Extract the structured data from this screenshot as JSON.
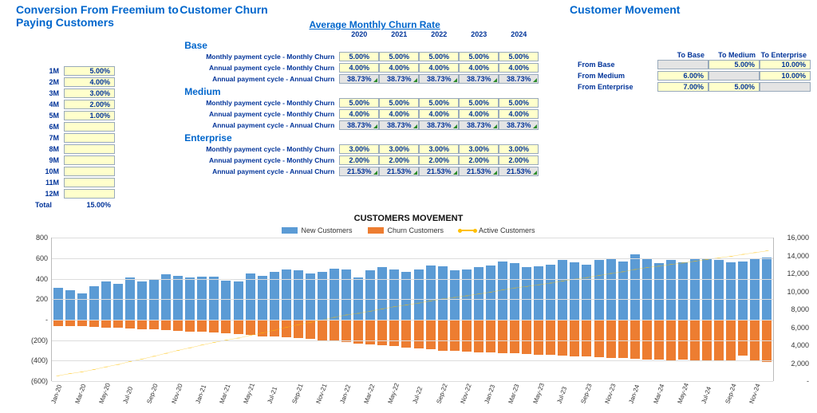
{
  "titles": {
    "conversion": "Conversion From Freemium to Paying Customers",
    "churn": "Customer Churn",
    "movement": "Customer Movement",
    "churn_header": "Average Monthly Churn Rate",
    "chart": "CUSTOMERS MOVEMENT"
  },
  "conversion": {
    "rows": [
      {
        "m": "1M",
        "v": "5.00%"
      },
      {
        "m": "2M",
        "v": "4.00%"
      },
      {
        "m": "3M",
        "v": "3.00%"
      },
      {
        "m": "4M",
        "v": "2.00%"
      },
      {
        "m": "5M",
        "v": "1.00%"
      },
      {
        "m": "6M",
        "v": ""
      },
      {
        "m": "7M",
        "v": ""
      },
      {
        "m": "8M",
        "v": ""
      },
      {
        "m": "9M",
        "v": ""
      },
      {
        "m": "10M",
        "v": ""
      },
      {
        "m": "11M",
        "v": ""
      },
      {
        "m": "12M",
        "v": ""
      }
    ],
    "total_label": "Total",
    "total_value": "15.00%"
  },
  "churn_years": [
    "2020",
    "2021",
    "2022",
    "2023",
    "2024"
  ],
  "churn_tiers": [
    {
      "name": "Base",
      "rows": [
        {
          "label": "Monthly payment cycle - Monthly Churn",
          "cells": [
            "5.00%",
            "5.00%",
            "5.00%",
            "5.00%",
            "5.00%"
          ],
          "gray": false
        },
        {
          "label": "Annual payment cycle - Monthly Churn",
          "cells": [
            "4.00%",
            "4.00%",
            "4.00%",
            "4.00%",
            "4.00%"
          ],
          "gray": false
        },
        {
          "label": "Annual payment cycle - Annual Churn",
          "cells": [
            "38.73%",
            "38.73%",
            "38.73%",
            "38.73%",
            "38.73%"
          ],
          "gray": true
        }
      ]
    },
    {
      "name": "Medium",
      "rows": [
        {
          "label": "Monthly payment cycle - Monthly Churn",
          "cells": [
            "5.00%",
            "5.00%",
            "5.00%",
            "5.00%",
            "5.00%"
          ],
          "gray": false
        },
        {
          "label": "Annual payment cycle - Monthly Churn",
          "cells": [
            "4.00%",
            "4.00%",
            "4.00%",
            "4.00%",
            "4.00%"
          ],
          "gray": false
        },
        {
          "label": "Annual payment cycle - Annual Churn",
          "cells": [
            "38.73%",
            "38.73%",
            "38.73%",
            "38.73%",
            "38.73%"
          ],
          "gray": true
        }
      ]
    },
    {
      "name": "Enterprise",
      "rows": [
        {
          "label": "Monthly payment cycle - Monthly Churn",
          "cells": [
            "3.00%",
            "3.00%",
            "3.00%",
            "3.00%",
            "3.00%"
          ],
          "gray": false
        },
        {
          "label": "Annual payment cycle - Monthly Churn",
          "cells": [
            "2.00%",
            "2.00%",
            "2.00%",
            "2.00%",
            "2.00%"
          ],
          "gray": false
        },
        {
          "label": "Annual payment cycle - Annual Churn",
          "cells": [
            "21.53%",
            "21.53%",
            "21.53%",
            "21.53%",
            "21.53%"
          ],
          "gray": true
        }
      ]
    }
  ],
  "movement": {
    "cols": [
      "To Base",
      "To Medium",
      "To Enterprise"
    ],
    "rows": [
      {
        "label": "From Base",
        "cells": [
          {
            "v": "",
            "t": "off"
          },
          {
            "v": "5.00%",
            "t": "y"
          },
          {
            "v": "10.00%",
            "t": "y"
          }
        ]
      },
      {
        "label": "From Medium",
        "cells": [
          {
            "v": "6.00%",
            "t": "y"
          },
          {
            "v": "",
            "t": "off"
          },
          {
            "v": "10.00%",
            "t": "y"
          }
        ]
      },
      {
        "label": "From Enterprise",
        "cells": [
          {
            "v": "7.00%",
            "t": "y"
          },
          {
            "v": "5.00%",
            "t": "y"
          },
          {
            "v": "",
            "t": "off"
          }
        ]
      }
    ]
  },
  "legend": {
    "a": "New Customers",
    "b": "Churn Customers",
    "c": "Active Customers"
  },
  "chart": {
    "left_ticks": [
      {
        "v": 800,
        "l": "800"
      },
      {
        "v": 600,
        "l": "600"
      },
      {
        "v": 400,
        "l": "400"
      },
      {
        "v": 200,
        "l": "200"
      },
      {
        "v": 0,
        "l": "-"
      },
      {
        "v": -200,
        "l": "(200)"
      },
      {
        "v": -400,
        "l": "(400)"
      },
      {
        "v": -600,
        "l": "(600)"
      }
    ],
    "left_min": -600,
    "left_max": 800,
    "right_ticks": [
      {
        "v": 16000,
        "l": "16,000"
      },
      {
        "v": 14000,
        "l": "14,000"
      },
      {
        "v": 12000,
        "l": "12,000"
      },
      {
        "v": 10000,
        "l": "10,000"
      },
      {
        "v": 8000,
        "l": "8,000"
      },
      {
        "v": 6000,
        "l": "6,000"
      },
      {
        "v": 4000,
        "l": "4,000"
      },
      {
        "v": 2000,
        "l": "2,000"
      },
      {
        "v": 0,
        "l": "-"
      }
    ],
    "right_min": 0,
    "right_max": 16000,
    "colors": {
      "new": "#5b9bd5",
      "churn": "#ed7d31",
      "active": "#ffc000",
      "grid": "#dddddd"
    },
    "xlabels": [
      "Jan-20",
      "Mar-20",
      "May-20",
      "Jul-20",
      "Sep-20",
      "Nov-20",
      "Jan-21",
      "Mar-21",
      "May-21",
      "Jul-21",
      "Sep-21",
      "Nov-21",
      "Jan-22",
      "Mar-22",
      "May-22",
      "Jul-22",
      "Sep-22",
      "Nov-22",
      "Jan-23",
      "Mar-23",
      "May-23",
      "Jul-23",
      "Sep-23",
      "Nov-23",
      "Jan-24",
      "Mar-24",
      "May-24",
      "Jul-24",
      "Sep-24",
      "Nov-24"
    ],
    "n": 60,
    "series": {
      "new": [
        310,
        290,
        260,
        330,
        370,
        350,
        410,
        370,
        400,
        440,
        430,
        410,
        420,
        420,
        380,
        370,
        450,
        430,
        470,
        490,
        480,
        450,
        470,
        500,
        490,
        410,
        480,
        510,
        490,
        470,
        490,
        530,
        520,
        480,
        490,
        510,
        530,
        570,
        550,
        510,
        520,
        540,
        580,
        560,
        540,
        580,
        600,
        570,
        640,
        590,
        550,
        580,
        560,
        590,
        600,
        580,
        560,
        570,
        590,
        610
      ],
      "churn": [
        -60,
        -60,
        -60,
        -70,
        -75,
        -80,
        -85,
        -90,
        -95,
        -100,
        -110,
        -115,
        -120,
        -125,
        -130,
        -140,
        -150,
        -160,
        -165,
        -170,
        -180,
        -190,
        -200,
        -210,
        -220,
        -230,
        -240,
        -250,
        -260,
        -270,
        -280,
        -290,
        -300,
        -305,
        -310,
        -315,
        -320,
        -325,
        -330,
        -335,
        -340,
        -345,
        -350,
        -355,
        -360,
        -365,
        -370,
        -375,
        -380,
        -385,
        -390,
        -395,
        -390,
        -393,
        -396,
        -399,
        -402,
        -350,
        -395,
        -415
      ],
      "active": [
        600,
        830,
        1030,
        1290,
        1585,
        1855,
        2180,
        2460,
        2765,
        3105,
        3425,
        3720,
        4020,
        4315,
        4565,
        4795,
        5095,
        5365,
        5670,
        5990,
        6290,
        6550,
        6820,
        7110,
        7380,
        7560,
        7800,
        8060,
        8290,
        8490,
        8700,
        8940,
        9160,
        9335,
        9515,
        9710,
        9920,
        10165,
        10385,
        10560,
        10740,
        10935,
        11165,
        11370,
        11550,
        11765,
        11995,
        12190,
        12450,
        12655,
        12815,
        13000,
        13170,
        13367,
        13571,
        13752,
        13910,
        14130,
        14325,
        14520
      ]
    }
  }
}
